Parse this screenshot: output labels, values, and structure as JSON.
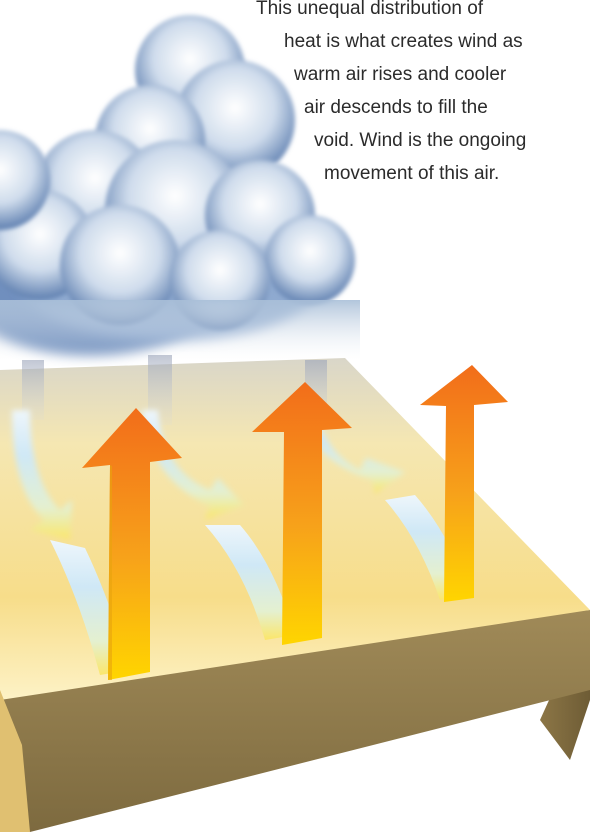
{
  "caption": {
    "lines": [
      "This unequal distribution of",
      "heat is what creates wind as",
      "warm air rises and cooler",
      "air descends to fill the",
      "void. Wind is the ongoing",
      "movement of this air."
    ]
  },
  "colors": {
    "ground_top_light": "#fdf3c8",
    "ground_top_dark": "#f0cf74",
    "ground_front": "#8a7446",
    "ground_side": "#6f5e38",
    "warm_arrow_top": "#f27b1c",
    "warm_arrow_bottom": "#ffd200",
    "cool_arrow_top": "#d4ecf8",
    "cool_arrow_bottom": "#f6ed9a",
    "sky_cloud": "#7b9cc9"
  },
  "icons": [
    "cloud-illustration",
    "warm-air-up-arrow",
    "cool-air-down-arrow"
  ]
}
